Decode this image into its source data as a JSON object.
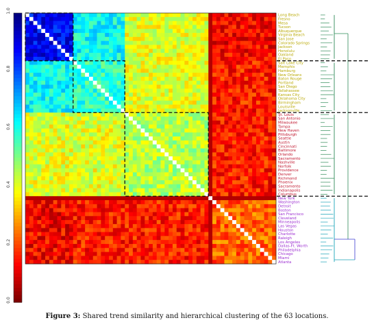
{
  "caption": {
    "label": "Figure 3:",
    "text": "Shared trend similarity and hierarchical clustering of the 63 locations."
  },
  "chart_data": {
    "type": "heatmap",
    "title": "",
    "colorbar": {
      "colormap": "jet_reversed",
      "ticks": [
        "1.0",
        "0.8",
        "0.6",
        "0.4",
        "0.2",
        "0.0"
      ],
      "tick_positions": [
        1.0,
        0.8,
        0.6,
        0.4,
        0.2,
        0.0
      ]
    },
    "diagonal": 1.0,
    "locations": [
      {
        "name": "Long Beach",
        "cluster": 0
      },
      {
        "name": "Fresno",
        "cluster": 0
      },
      {
        "name": "Mesa",
        "cluster": 0
      },
      {
        "name": "Tucson",
        "cluster": 0
      },
      {
        "name": "Albuquerque",
        "cluster": 0
      },
      {
        "name": "Virginia Beach",
        "cluster": 0
      },
      {
        "name": "San Jose",
        "cluster": 0
      },
      {
        "name": "Colorado Springs",
        "cluster": 0
      },
      {
        "name": "Jackson",
        "cluster": 0
      },
      {
        "name": "Honolulu",
        "cluster": 0
      },
      {
        "name": "Oakland",
        "cluster": 0
      },
      {
        "name": "El Paso",
        "cluster": 0
      },
      {
        "name": "Salt Lake City",
        "cluster": 1
      },
      {
        "name": "Memphis",
        "cluster": 1
      },
      {
        "name": "Hamburg",
        "cluster": 1
      },
      {
        "name": "New Orleans",
        "cluster": 1
      },
      {
        "name": "Baton Rouge",
        "cluster": 1
      },
      {
        "name": "Portland",
        "cluster": 1
      },
      {
        "name": "San Diego",
        "cluster": 1
      },
      {
        "name": "Tallahassee",
        "cluster": 1
      },
      {
        "name": "Kansas City",
        "cluster": 1
      },
      {
        "name": "Oklahoma City",
        "cluster": 1
      },
      {
        "name": "Birmingham",
        "cluster": 1
      },
      {
        "name": "Louisville",
        "cluster": 1
      },
      {
        "name": "Jacksonville",
        "cluster": 1
      },
      {
        "name": "St. Louis",
        "cluster": 2
      },
      {
        "name": "San Antonio",
        "cluster": 2
      },
      {
        "name": "Milwaukee",
        "cluster": 2
      },
      {
        "name": "Tampa",
        "cluster": 2
      },
      {
        "name": "New Haven",
        "cluster": 2
      },
      {
        "name": "Pittsburgh",
        "cluster": 2
      },
      {
        "name": "Seattle",
        "cluster": 2
      },
      {
        "name": "Austin",
        "cluster": 2
      },
      {
        "name": "Cincinnati",
        "cluster": 2
      },
      {
        "name": "Baltimore",
        "cluster": 2
      },
      {
        "name": "Orlando",
        "cluster": 2
      },
      {
        "name": "Sacramento",
        "cluster": 2
      },
      {
        "name": "Nashville",
        "cluster": 2
      },
      {
        "name": "Norfolk",
        "cluster": 2
      },
      {
        "name": "Providence",
        "cluster": 2
      },
      {
        "name": "Denver",
        "cluster": 2
      },
      {
        "name": "Richmond",
        "cluster": 2
      },
      {
        "name": "Phoenix",
        "cluster": 2
      },
      {
        "name": "Sacramento",
        "cluster": 2
      },
      {
        "name": "Indianapolis",
        "cluster": 2
      },
      {
        "name": "Columbus",
        "cluster": 2
      },
      {
        "name": "New York",
        "cluster": 3
      },
      {
        "name": "Washington",
        "cluster": 3
      },
      {
        "name": "Detroit",
        "cluster": 3
      },
      {
        "name": "Boston",
        "cluster": 3
      },
      {
        "name": "San Francisco",
        "cluster": 3
      },
      {
        "name": "Cleveland",
        "cluster": 3
      },
      {
        "name": "Minneapolis",
        "cluster": 3
      },
      {
        "name": "Las Vegas",
        "cluster": 3
      },
      {
        "name": "Houston",
        "cluster": 3
      },
      {
        "name": "Charlotte",
        "cluster": 3
      },
      {
        "name": "Raleigh",
        "cluster": 3
      },
      {
        "name": "Los Angeles",
        "cluster": 3
      },
      {
        "name": "Dallas-Ft. Worth",
        "cluster": 3
      },
      {
        "name": "Philadelphia",
        "cluster": 3
      },
      {
        "name": "Chicago",
        "cluster": 3
      },
      {
        "name": "Miami",
        "cluster": 3
      },
      {
        "name": "Atlanta",
        "cluster": 3
      }
    ],
    "clusters": [
      {
        "index": 0,
        "size": 12,
        "within_similarity": 0.88,
        "label_color": "#b8a800",
        "dendro_color": "#2e8b57"
      },
      {
        "index": 1,
        "size": 13,
        "within_similarity": 0.58,
        "label_color": "#b8a800",
        "dendro_color": "#2e8b57"
      },
      {
        "index": 2,
        "size": 21,
        "within_similarity": 0.45,
        "label_color": "#c0142c",
        "dendro_color": "#2e8b57"
      },
      {
        "index": 3,
        "size": 17,
        "within_similarity": 0.22,
        "label_color": "#9b2bd0",
        "dendro_color": "#1aa3b8"
      }
    ],
    "between_cluster_similarity": [
      [
        0.88,
        0.62,
        0.4,
        0.12
      ],
      [
        0.62,
        0.58,
        0.4,
        0.15
      ],
      [
        0.4,
        0.4,
        0.45,
        0.15
      ],
      [
        0.12,
        0.15,
        0.15,
        0.22
      ]
    ],
    "first_row_of_cluster_3": {
      "name": "New York",
      "similarity_to_others": 0.05
    },
    "dashed_cluster_boxes": true,
    "dendrogram_cut_lines": 3
  }
}
